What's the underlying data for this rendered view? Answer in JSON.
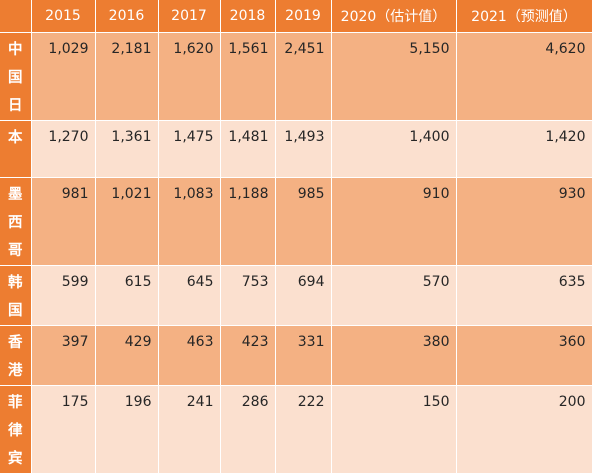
{
  "table": {
    "header": [
      "",
      "2015",
      "2016",
      "2017",
      "2018",
      "2019",
      "2020（估计值）",
      "2021（预测值）"
    ],
    "rows": [
      {
        "country": "中国日",
        "values": [
          "1,029",
          "2,181",
          "1,620",
          "1,561",
          "2,451",
          "5,150",
          "4,620"
        ]
      },
      {
        "country": "本",
        "values": [
          "1,270",
          "1,361",
          "1,475",
          "1,481",
          "1,493",
          "1,400",
          "1,420"
        ]
      },
      {
        "country": "墨西哥",
        "values": [
          "981",
          "1,021",
          "1,083",
          "1,188",
          "985",
          "910",
          "930"
        ]
      },
      {
        "country": "韩国",
        "values": [
          "599",
          "615",
          "645",
          "753",
          "694",
          "570",
          "635"
        ]
      },
      {
        "country": "香港",
        "values": [
          "397",
          "429",
          "463",
          "423",
          "331",
          "380",
          "360"
        ]
      },
      {
        "country": "菲律宾",
        "values": [
          "175",
          "196",
          "241",
          "286",
          "222",
          "150",
          "200"
        ]
      }
    ]
  }
}
